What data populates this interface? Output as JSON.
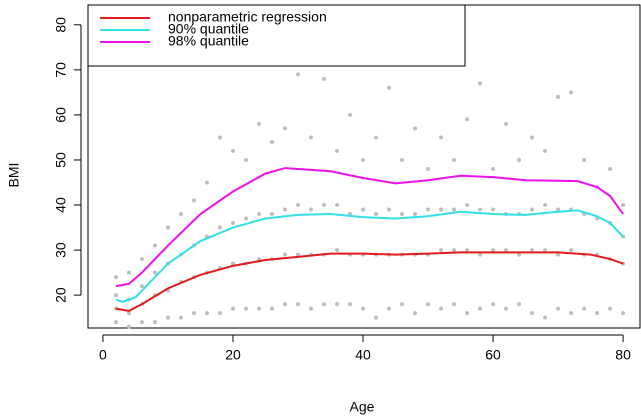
{
  "chart_data": {
    "type": "scatter",
    "x_label": "Age",
    "y_label": "BMI",
    "xlim": [
      -2.3,
      82.6
    ],
    "ylim": [
      12.7,
      84.4
    ],
    "xticks": [
      0,
      20,
      40,
      60,
      80
    ],
    "yticks": [
      20,
      30,
      40,
      50,
      60,
      70,
      80
    ],
    "legend": "top-left",
    "points": {
      "color": "#bebebe",
      "x": [
        2,
        2,
        2,
        2,
        4,
        4,
        4,
        4,
        6,
        6,
        6,
        6,
        8,
        8,
        8,
        8,
        10,
        10,
        10,
        10,
        12,
        12,
        12,
        12,
        14,
        14,
        14,
        14,
        16,
        16,
        16,
        16,
        18,
        18,
        18,
        18,
        20,
        20,
        20,
        20,
        22,
        22,
        22,
        22,
        24,
        24,
        24,
        24,
        26,
        26,
        26,
        26,
        28,
        28,
        28,
        28,
        30,
        30,
        30,
        30,
        32,
        32,
        32,
        32,
        34,
        34,
        34,
        34,
        36,
        36,
        36,
        36,
        38,
        38,
        38,
        38,
        40,
        40,
        40,
        40,
        42,
        42,
        42,
        42,
        44,
        44,
        44,
        44,
        46,
        46,
        46,
        46,
        48,
        48,
        48,
        48,
        50,
        50,
        50,
        50,
        52,
        52,
        52,
        52,
        54,
        54,
        54,
        54,
        56,
        56,
        56,
        56,
        58,
        58,
        58,
        58,
        60,
        60,
        60,
        60,
        62,
        62,
        62,
        62,
        64,
        64,
        64,
        64,
        66,
        66,
        66,
        66,
        68,
        68,
        68,
        68,
        70,
        70,
        70,
        70,
        72,
        72,
        72,
        72,
        74,
        74,
        74,
        74,
        76,
        76,
        76,
        76,
        78,
        78,
        78,
        78,
        80,
        80,
        80,
        80
      ],
      "values": [
        14,
        17,
        20,
        24,
        13,
        16,
        19,
        25,
        14,
        18,
        22,
        28,
        14,
        20,
        25,
        31,
        15,
        21,
        27,
        35,
        15,
        23,
        29,
        38,
        16,
        24,
        31,
        41,
        16,
        25,
        33,
        45,
        16,
        26,
        35,
        55,
        17,
        27,
        36,
        52,
        17,
        27,
        37,
        50,
        17,
        28,
        38,
        58,
        17,
        28,
        38,
        54,
        18,
        29,
        39,
        57,
        18,
        29,
        40,
        69,
        17,
        29,
        39,
        55,
        18,
        29,
        40,
        68,
        18,
        30,
        40,
        52,
        18,
        29,
        38,
        60,
        17,
        29,
        39,
        50,
        15,
        29,
        38,
        55,
        17,
        29,
        39,
        66,
        18,
        29,
        38,
        50,
        16,
        29,
        38,
        57,
        18,
        29,
        39,
        48,
        17,
        30,
        39,
        55,
        18,
        30,
        39,
        50,
        16,
        30,
        40,
        59,
        17,
        29,
        39,
        67,
        18,
        30,
        39,
        48,
        17,
        30,
        38,
        58,
        18,
        29,
        38,
        50,
        16,
        30,
        39,
        55,
        15,
        30,
        40,
        52,
        17,
        29,
        39,
        64,
        16,
        30,
        39,
        65,
        17,
        29,
        38,
        50,
        16,
        29,
        37,
        44,
        17,
        28,
        36,
        48,
        16,
        27,
        33,
        40
      ]
    },
    "series": [
      {
        "name": "nonparametric regression",
        "color": "#e41a1c",
        "x": [
          2,
          4,
          6,
          10,
          15,
          20,
          25,
          30,
          35,
          40,
          45,
          50,
          55,
          60,
          65,
          70,
          75,
          78,
          80
        ],
        "values": [
          17,
          16.5,
          18,
          21.5,
          24.5,
          26.5,
          27.8,
          28.5,
          29.2,
          29.2,
          29,
          29.2,
          29.5,
          29.5,
          29.5,
          29.5,
          29,
          28,
          27
        ]
      },
      {
        "name": "90% quantile",
        "color": "#33e0e6",
        "x": [
          2,
          3,
          5,
          8,
          10,
          15,
          20,
          25,
          30,
          35,
          40,
          45,
          50,
          55,
          60,
          65,
          70,
          73,
          76,
          78,
          80
        ],
        "values": [
          19,
          18.5,
          19.5,
          24,
          27,
          32,
          35,
          37,
          37.8,
          38,
          37.3,
          37,
          37.5,
          38.5,
          38,
          37.8,
          38.5,
          38.8,
          37.5,
          36,
          33
        ]
      },
      {
        "name": "98% quantile",
        "color": "#ee11ee",
        "x": [
          2,
          4,
          6,
          10,
          15,
          20,
          25,
          28,
          30,
          35,
          40,
          45,
          50,
          55,
          60,
          65,
          70,
          73,
          76,
          78,
          80
        ],
        "values": [
          22,
          22.5,
          25,
          31,
          38,
          43,
          47,
          48.2,
          48,
          47.5,
          46,
          44.8,
          45.5,
          46.5,
          46.2,
          45.5,
          45.4,
          45.3,
          44,
          42,
          38
        ]
      }
    ]
  }
}
